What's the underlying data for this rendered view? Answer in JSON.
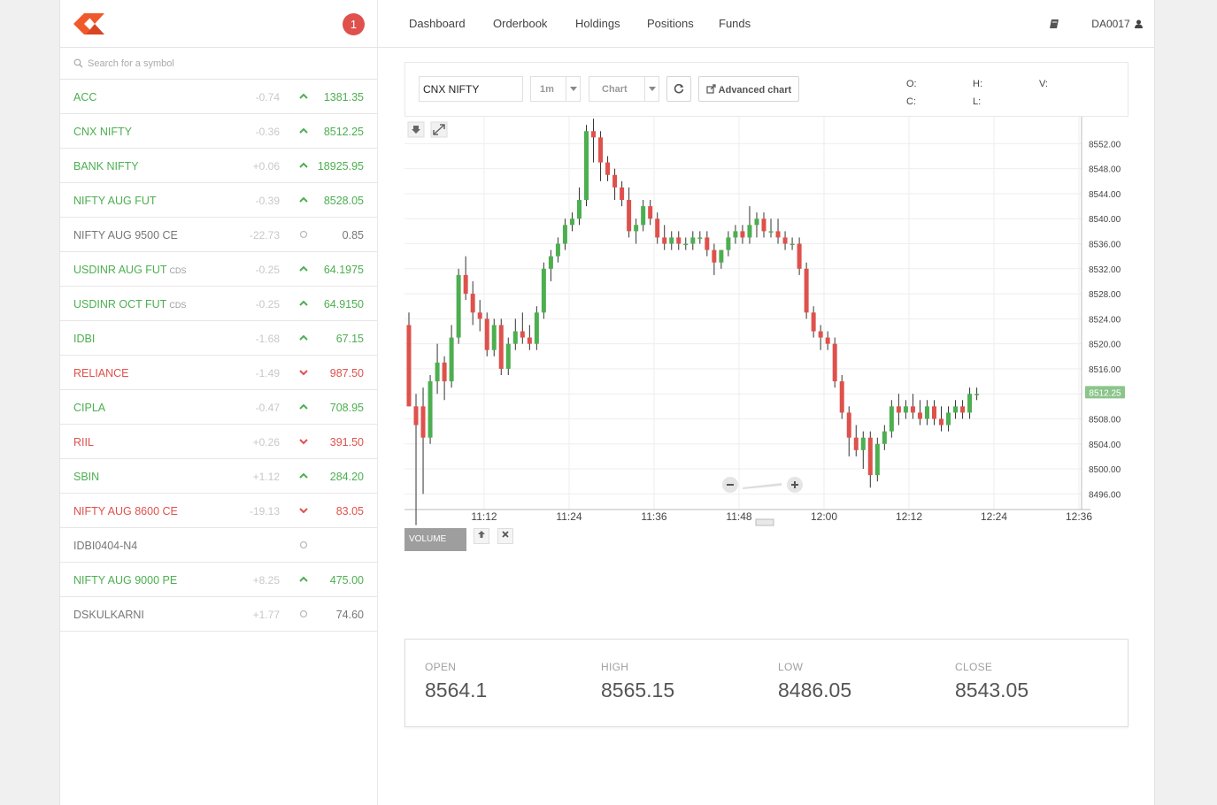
{
  "app": {
    "notifications_count": "1",
    "accent_color": "#f1592a"
  },
  "search": {
    "placeholder": "Search for a symbol"
  },
  "watchlist": [
    {
      "symbol": "ACC",
      "exchange": "",
      "change": "-0.74",
      "direction": "up",
      "price": "1381.35"
    },
    {
      "symbol": "CNX NIFTY",
      "exchange": "",
      "change": "-0.36",
      "direction": "up",
      "price": "8512.25"
    },
    {
      "symbol": "BANK NIFTY",
      "exchange": "",
      "change": "+0.06",
      "direction": "up",
      "price": "18925.95"
    },
    {
      "symbol": "NIFTY AUG FUT",
      "exchange": "",
      "change": "-0.39",
      "direction": "up",
      "price": "8528.05"
    },
    {
      "symbol": "NIFTY AUG 9500 CE",
      "exchange": "",
      "change": "-22.73",
      "direction": "flat",
      "price": "0.85"
    },
    {
      "symbol": "USDINR AUG FUT",
      "exchange": "CDS",
      "change": "-0.25",
      "direction": "up",
      "price": "64.1975"
    },
    {
      "symbol": "USDINR OCT FUT",
      "exchange": "CDS",
      "change": "-0.25",
      "direction": "up",
      "price": "64.9150"
    },
    {
      "symbol": "IDBI",
      "exchange": "",
      "change": "-1.68",
      "direction": "up",
      "price": "67.15"
    },
    {
      "symbol": "RELIANCE",
      "exchange": "",
      "change": "-1.49",
      "direction": "down",
      "price": "987.50"
    },
    {
      "symbol": "CIPLA",
      "exchange": "",
      "change": "-0.47",
      "direction": "up",
      "price": "708.95"
    },
    {
      "symbol": "RIIL",
      "exchange": "",
      "change": "+0.26",
      "direction": "down",
      "price": "391.50"
    },
    {
      "symbol": "SBIN",
      "exchange": "",
      "change": "+1.12",
      "direction": "up",
      "price": "284.20"
    },
    {
      "symbol": "NIFTY AUG 8600 CE",
      "exchange": "",
      "change": "-19.13",
      "direction": "down",
      "price": "83.05"
    },
    {
      "symbol": "IDBI0404-N4",
      "exchange": "",
      "change": "",
      "direction": "flat",
      "price": ""
    },
    {
      "symbol": "NIFTY AUG 9000 PE",
      "exchange": "",
      "change": "+8.25",
      "direction": "up",
      "price": "475.00"
    },
    {
      "symbol": "DSKULKARNI",
      "exchange": "",
      "change": "+1.77",
      "direction": "flat",
      "price": "74.60"
    }
  ],
  "nav": {
    "links": [
      "Dashboard",
      "Orderbook",
      "Holdings",
      "Positions",
      "Funds"
    ],
    "user": "DA0017"
  },
  "toolbar": {
    "symbol": "CNX NIFTY",
    "interval": "1m",
    "chart_type": "Chart",
    "advanced_label": "Advanced chart",
    "ohlc_labels": {
      "o": "O:",
      "h": "H:",
      "v": "V:",
      "c": "C:",
      "l": "L:"
    }
  },
  "chart_data": {
    "type": "candlestick",
    "x_ticks": [
      "11:12",
      "11:24",
      "11:36",
      "11:48",
      "12:00",
      "12:12",
      "12:24",
      "12:36"
    ],
    "y_ticks": [
      "8552.00",
      "8548.00",
      "8544.00",
      "8540.00",
      "8536.00",
      "8532.00",
      "8528.00",
      "8524.00",
      "8520.00",
      "8516.00",
      "8512.00",
      "8508.00",
      "8504.00",
      "8500.00",
      "8496.00"
    ],
    "ylim": [
      8493.5,
      8556.3
    ],
    "last_price_label": "8512.25",
    "last_price": 8512.25,
    "up_color": "#4caf50",
    "down_color": "#df514c",
    "volume_label": "VOLUME",
    "candles": [
      [
        8523,
        8525,
        8510,
        8510
      ],
      [
        8510,
        8512,
        8491,
        8507
      ],
      [
        8510,
        8513,
        8496,
        8505
      ],
      [
        8505,
        8515,
        8504,
        8514
      ],
      [
        8514,
        8520,
        8512,
        8517
      ],
      [
        8517,
        8518,
        8511,
        8514
      ],
      [
        8514,
        8523,
        8513,
        8521
      ],
      [
        8521,
        8532,
        8520,
        8531
      ],
      [
        8531,
        8534,
        8527,
        8528
      ],
      [
        8528,
        8530,
        8523,
        8525
      ],
      [
        8525,
        8527,
        8522,
        8524
      ],
      [
        8524,
        8525,
        8518,
        8519
      ],
      [
        8519,
        8524,
        8518,
        8523
      ],
      [
        8523,
        8524,
        8515,
        8516
      ],
      [
        8516,
        8521,
        8515,
        8520
      ],
      [
        8520,
        8524,
        8519,
        8522
      ],
      [
        8522,
        8525,
        8520,
        8521
      ],
      [
        8521,
        8523,
        8519,
        8520
      ],
      [
        8520,
        8526,
        8519,
        8525
      ],
      [
        8525,
        8533,
        8524,
        8532
      ],
      [
        8532,
        8535,
        8530,
        8534
      ],
      [
        8534,
        8537,
        8533,
        8536
      ],
      [
        8536,
        8540,
        8535,
        8539
      ],
      [
        8539,
        8541,
        8538,
        8540
      ],
      [
        8540,
        8545,
        8539,
        8543
      ],
      [
        8543,
        8555,
        8542,
        8554
      ],
      [
        8554,
        8556,
        8549,
        8553
      ],
      [
        8553,
        8554,
        8546,
        8549
      ],
      [
        8549,
        8550,
        8546,
        8547
      ],
      [
        8547,
        8548,
        8543,
        8545
      ],
      [
        8545,
        8546,
        8542,
        8543
      ],
      [
        8543,
        8545,
        8537,
        8538
      ],
      [
        8538,
        8540,
        8536,
        8539
      ],
      [
        8539,
        8543,
        8538,
        8542
      ],
      [
        8542,
        8543,
        8539,
        8540
      ],
      [
        8540,
        8541,
        8536,
        8537
      ],
      [
        8537,
        8539,
        8535,
        8536
      ],
      [
        8536,
        8538,
        8535,
        8537
      ],
      [
        8537,
        8538,
        8535,
        8536
      ],
      [
        8536,
        8537,
        8535,
        8536
      ],
      [
        8536,
        8538,
        8535,
        8537
      ],
      [
        8537,
        8538,
        8536,
        8537
      ],
      [
        8537,
        8538,
        8534,
        8535
      ],
      [
        8535,
        8536,
        8531,
        8533
      ],
      [
        8533,
        8535,
        8532,
        8535
      ],
      [
        8535,
        8538,
        8534,
        8537
      ],
      [
        8537,
        8539,
        8536,
        8538
      ],
      [
        8538,
        8539,
        8536,
        8537
      ],
      [
        8537,
        8542,
        8536,
        8539
      ],
      [
        8539,
        8541,
        8537,
        8540
      ],
      [
        8540,
        8541,
        8537,
        8538
      ],
      [
        8538,
        8540,
        8537,
        8538
      ],
      [
        8538,
        8540,
        8536,
        8537
      ],
      [
        8537,
        8538,
        8535,
        8536
      ],
      [
        8536,
        8537,
        8535,
        8536
      ],
      [
        8536,
        8537,
        8531,
        8532
      ],
      [
        8532,
        8533,
        8524,
        8525
      ],
      [
        8525,
        8526,
        8521,
        8522
      ],
      [
        8522,
        8523,
        8519,
        8521
      ],
      [
        8521,
        8522,
        8519,
        8520
      ],
      [
        8520,
        8521,
        8513,
        8514
      ],
      [
        8514,
        8515,
        8508,
        8509
      ],
      [
        8509,
        8510,
        8502,
        8505
      ],
      [
        8505,
        8507,
        8502,
        8503
      ],
      [
        8503,
        8506,
        8500,
        8505
      ],
      [
        8505,
        8506,
        8497,
        8499
      ],
      [
        8499,
        8505,
        8498,
        8504
      ],
      [
        8504,
        8507,
        8503,
        8506
      ],
      [
        8506,
        8511,
        8505,
        8510
      ],
      [
        8510,
        8512,
        8507,
        8509
      ],
      [
        8509,
        8511,
        8508,
        8510
      ],
      [
        8510,
        8512,
        8508,
        8509
      ],
      [
        8509,
        8511,
        8507,
        8508
      ],
      [
        8508,
        8511,
        8507,
        8510
      ],
      [
        8510,
        8511,
        8507,
        8508
      ],
      [
        8508,
        8510,
        8506,
        8507
      ],
      [
        8507,
        8510,
        8506,
        8509
      ],
      [
        8509,
        8511,
        8508,
        8510
      ],
      [
        8510,
        8511,
        8508,
        8509
      ],
      [
        8509,
        8513,
        8508,
        8512
      ],
      [
        8512,
        8513,
        8511,
        8512
      ]
    ]
  },
  "summary": [
    {
      "label": "OPEN",
      "value": "8564.1"
    },
    {
      "label": "HIGH",
      "value": "8565.15"
    },
    {
      "label": "LOW",
      "value": "8486.05"
    },
    {
      "label": "CLOSE",
      "value": "8543.05"
    }
  ]
}
